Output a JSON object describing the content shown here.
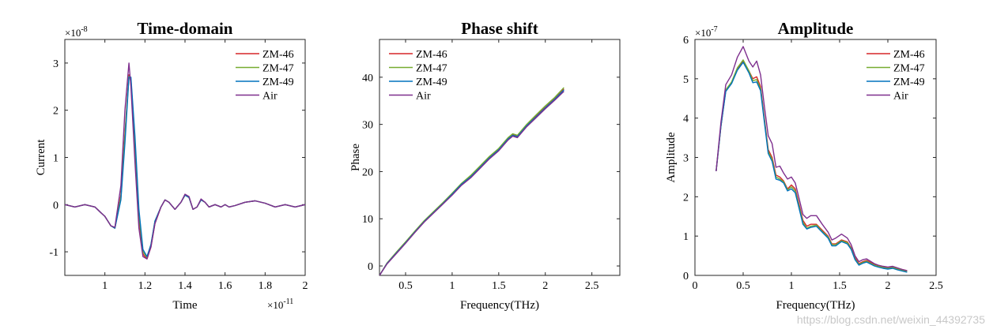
{
  "colors": {
    "ZM-46": "#d62728",
    "ZM-47": "#77ac30",
    "ZM-49": "#0072bd",
    "Air": "#7e2f8e"
  },
  "watermark": "https://blog.csdn.net/weixin_44392735",
  "chart_data": [
    {
      "type": "line",
      "title": "Time-domain",
      "xlabel": "Time",
      "ylabel": "Current",
      "x_exponent": "×10",
      "x_exponent_power": "-11",
      "y_exponent": "×10",
      "y_exponent_power": "-8",
      "xlim": [
        0.8,
        2.0
      ],
      "ylim": [
        -1.5,
        3.5
      ],
      "xticks": [
        1,
        1.2,
        1.4,
        1.6,
        1.8,
        2
      ],
      "xtick_labels": [
        "1",
        "1.2",
        "1.4",
        "1.6",
        "1.8",
        "2"
      ],
      "yticks": [
        -1,
        0,
        1,
        2,
        3
      ],
      "ytick_labels": [
        "-1",
        "0",
        "1",
        "2",
        "3"
      ],
      "legend": [
        "ZM-46",
        "ZM-47",
        "ZM-49",
        "Air"
      ],
      "legend_position": "top-right",
      "series": [
        {
          "name": "ZM-46",
          "x": [
            0.8,
            0.85,
            0.9,
            0.95,
            1.0,
            1.03,
            1.05,
            1.08,
            1.1,
            1.12,
            1.13,
            1.15,
            1.17,
            1.19,
            1.21,
            1.23,
            1.25,
            1.28,
            1.3,
            1.32,
            1.35,
            1.38,
            1.4,
            1.42,
            1.44,
            1.46,
            1.48,
            1.5,
            1.52,
            1.55,
            1.58,
            1.6,
            1.62,
            1.65,
            1.7,
            1.75,
            1.8,
            1.85,
            1.9,
            1.95,
            2.0
          ],
          "y": [
            0,
            -0.05,
            0.0,
            -0.05,
            -0.25,
            -0.45,
            -0.5,
            0.2,
            1.5,
            2.75,
            2.6,
            1.2,
            -0.3,
            -1.05,
            -1.15,
            -0.9,
            -0.4,
            -0.05,
            0.1,
            0.05,
            -0.1,
            0.05,
            0.2,
            0.15,
            -0.1,
            -0.05,
            0.1,
            0.05,
            -0.05,
            0.0,
            -0.05,
            0.0,
            -0.05,
            -0.02,
            0.05,
            0.08,
            0.03,
            -0.05,
            0.0,
            -0.05,
            0.0
          ]
        },
        {
          "name": "ZM-47",
          "x": [
            0.8,
            0.85,
            0.9,
            0.95,
            1.0,
            1.03,
            1.05,
            1.08,
            1.1,
            1.12,
            1.13,
            1.15,
            1.17,
            1.19,
            1.21,
            1.23,
            1.25,
            1.28,
            1.3,
            1.32,
            1.35,
            1.38,
            1.4,
            1.42,
            1.44,
            1.46,
            1.48,
            1.5,
            1.52,
            1.55,
            1.58,
            1.6,
            1.62,
            1.65,
            1.7,
            1.75,
            1.8,
            1.85,
            1.9,
            1.95,
            2.0
          ],
          "y": [
            0,
            -0.05,
            0.0,
            -0.05,
            -0.25,
            -0.45,
            -0.5,
            0.15,
            1.45,
            2.72,
            2.65,
            1.3,
            -0.2,
            -1.0,
            -1.12,
            -0.85,
            -0.35,
            -0.05,
            0.1,
            0.05,
            -0.1,
            0.05,
            0.2,
            0.15,
            -0.1,
            -0.05,
            0.1,
            0.05,
            -0.05,
            0.0,
            -0.05,
            0.0,
            -0.05,
            -0.02,
            0.05,
            0.08,
            0.03,
            -0.05,
            0.0,
            -0.05,
            0.0
          ]
        },
        {
          "name": "ZM-49",
          "x": [
            0.8,
            0.85,
            0.9,
            0.95,
            1.0,
            1.03,
            1.05,
            1.08,
            1.1,
            1.12,
            1.13,
            1.15,
            1.17,
            1.19,
            1.21,
            1.23,
            1.25,
            1.28,
            1.3,
            1.32,
            1.35,
            1.38,
            1.4,
            1.42,
            1.44,
            1.46,
            1.48,
            1.5,
            1.52,
            1.55,
            1.58,
            1.6,
            1.62,
            1.65,
            1.7,
            1.75,
            1.8,
            1.85,
            1.9,
            1.95,
            2.0
          ],
          "y": [
            0,
            -0.05,
            0.0,
            -0.05,
            -0.25,
            -0.45,
            -0.5,
            0.1,
            1.3,
            2.7,
            2.7,
            1.45,
            -0.1,
            -0.95,
            -1.1,
            -0.85,
            -0.35,
            -0.05,
            0.1,
            0.05,
            -0.1,
            0.05,
            0.2,
            0.15,
            -0.1,
            -0.05,
            0.1,
            0.05,
            -0.05,
            0.0,
            -0.05,
            0.0,
            -0.05,
            -0.02,
            0.05,
            0.08,
            0.03,
            -0.05,
            0.0,
            -0.05,
            0.0
          ]
        },
        {
          "name": "Air",
          "x": [
            0.8,
            0.85,
            0.9,
            0.95,
            1.0,
            1.03,
            1.05,
            1.08,
            1.1,
            1.12,
            1.13,
            1.15,
            1.17,
            1.19,
            1.21,
            1.23,
            1.25,
            1.28,
            1.3,
            1.32,
            1.35,
            1.38,
            1.4,
            1.42,
            1.44,
            1.46,
            1.48,
            1.5,
            1.52,
            1.55,
            1.58,
            1.6,
            1.62,
            1.65,
            1.7,
            1.75,
            1.8,
            1.85,
            1.9,
            1.95,
            2.0
          ],
          "y": [
            0,
            -0.05,
            0.0,
            -0.05,
            -0.25,
            -0.45,
            -0.48,
            0.4,
            2.0,
            3.0,
            2.5,
            0.9,
            -0.5,
            -1.1,
            -1.15,
            -0.9,
            -0.4,
            -0.05,
            0.1,
            0.05,
            -0.1,
            0.05,
            0.22,
            0.17,
            -0.1,
            -0.05,
            0.12,
            0.05,
            -0.05,
            0.0,
            -0.05,
            0.0,
            -0.05,
            -0.02,
            0.05,
            0.08,
            0.03,
            -0.05,
            0.0,
            -0.05,
            0.0
          ]
        }
      ]
    },
    {
      "type": "line",
      "title": "Phase shift",
      "xlabel": "Frequency(THz)",
      "ylabel": "Phase",
      "xlim": [
        0.22,
        2.8
      ],
      "ylim": [
        -2,
        48
      ],
      "xticks": [
        0.5,
        1,
        1.5,
        2,
        2.5
      ],
      "xtick_labels": [
        "0.5",
        "1",
        "1.5",
        "2",
        "2.5"
      ],
      "yticks": [
        0,
        10,
        20,
        30,
        40
      ],
      "ytick_labels": [
        "0",
        "10",
        "20",
        "30",
        "40"
      ],
      "legend": [
        "ZM-46",
        "ZM-47",
        "ZM-49",
        "Air"
      ],
      "legend_position": "top-left",
      "series": [
        {
          "name": "ZM-46",
          "x": [
            0.22,
            0.3,
            0.4,
            0.5,
            0.6,
            0.7,
            0.8,
            0.9,
            1.0,
            1.1,
            1.2,
            1.3,
            1.4,
            1.5,
            1.6,
            1.65,
            1.7,
            1.8,
            1.9,
            2.0,
            2.1,
            2.2
          ],
          "y": [
            -2,
            0.5,
            2.8,
            5.0,
            7.3,
            9.5,
            11.4,
            13.3,
            15.3,
            17.4,
            19.0,
            21.0,
            23.0,
            24.7,
            27.0,
            27.8,
            27.5,
            29.8,
            31.8,
            33.6,
            35.4,
            37.5
          ]
        },
        {
          "name": "ZM-47",
          "x": [
            0.22,
            0.3,
            0.4,
            0.5,
            0.6,
            0.7,
            0.8,
            0.9,
            1.0,
            1.1,
            1.2,
            1.3,
            1.4,
            1.5,
            1.6,
            1.65,
            1.7,
            1.8,
            1.9,
            2.0,
            2.1,
            2.2
          ],
          "y": [
            -2,
            0.6,
            2.9,
            5.1,
            7.4,
            9.6,
            11.5,
            13.4,
            15.4,
            17.5,
            19.2,
            21.2,
            23.2,
            24.9,
            27.2,
            28.0,
            27.7,
            30.0,
            32.0,
            33.9,
            35.7,
            37.8
          ]
        },
        {
          "name": "ZM-49",
          "x": [
            0.22,
            0.3,
            0.4,
            0.5,
            0.6,
            0.7,
            0.8,
            0.9,
            1.0,
            1.1,
            1.2,
            1.3,
            1.4,
            1.5,
            1.6,
            1.65,
            1.7,
            1.8,
            1.9,
            2.0,
            2.1,
            2.2
          ],
          "y": [
            -2,
            0.5,
            2.7,
            4.9,
            7.2,
            9.4,
            11.3,
            13.2,
            15.2,
            17.3,
            18.9,
            20.9,
            22.9,
            24.6,
            26.9,
            27.7,
            27.4,
            29.7,
            31.6,
            33.5,
            35.3,
            37.3
          ]
        },
        {
          "name": "Air",
          "x": [
            0.22,
            0.3,
            0.4,
            0.5,
            0.6,
            0.7,
            0.8,
            0.9,
            1.0,
            1.1,
            1.2,
            1.3,
            1.4,
            1.5,
            1.6,
            1.65,
            1.7,
            1.8,
            1.9,
            2.0,
            2.1,
            2.2
          ],
          "y": [
            -2,
            0.4,
            2.6,
            4.8,
            7.1,
            9.3,
            11.2,
            13.1,
            15.0,
            17.1,
            18.7,
            20.7,
            22.7,
            24.4,
            26.7,
            27.5,
            27.2,
            29.5,
            31.4,
            33.3,
            35.1,
            37.0
          ]
        }
      ]
    },
    {
      "type": "line",
      "title": "Amplitude",
      "xlabel": "Frequency(THz)",
      "ylabel": "Amplitude",
      "y_exponent": "×10",
      "y_exponent_power": "-7",
      "xlim": [
        0,
        2.5
      ],
      "ylim": [
        0,
        6
      ],
      "xticks": [
        0,
        0.5,
        1,
        1.5,
        2,
        2.5
      ],
      "xtick_labels": [
        "0",
        "0.5",
        "1",
        "1.5",
        "2",
        "2.5"
      ],
      "yticks": [
        0,
        1,
        2,
        3,
        4,
        5,
        6
      ],
      "ytick_labels": [
        "0",
        "1",
        "2",
        "3",
        "4",
        "5",
        "6"
      ],
      "legend": [
        "ZM-46",
        "ZM-47",
        "ZM-49",
        "Air"
      ],
      "legend_position": "top-right",
      "series": [
        {
          "name": "ZM-46",
          "x": [
            0.22,
            0.27,
            0.32,
            0.38,
            0.44,
            0.5,
            0.56,
            0.6,
            0.64,
            0.68,
            0.72,
            0.76,
            0.8,
            0.84,
            0.88,
            0.92,
            0.96,
            1.0,
            1.04,
            1.08,
            1.12,
            1.16,
            1.2,
            1.26,
            1.32,
            1.38,
            1.42,
            1.46,
            1.52,
            1.58,
            1.62,
            1.66,
            1.7,
            1.74,
            1.78,
            1.82,
            1.86,
            1.9,
            1.95,
            2.0,
            2.05,
            2.1,
            2.15,
            2.2
          ],
          "y": [
            2.65,
            3.8,
            4.7,
            4.9,
            5.25,
            5.45,
            5.2,
            5.0,
            5.05,
            4.8,
            4.0,
            3.2,
            3.0,
            2.55,
            2.5,
            2.4,
            2.2,
            2.3,
            2.2,
            1.8,
            1.4,
            1.25,
            1.3,
            1.3,
            1.15,
            1.0,
            0.8,
            0.8,
            0.9,
            0.85,
            0.7,
            0.45,
            0.3,
            0.35,
            0.38,
            0.33,
            0.28,
            0.25,
            0.22,
            0.2,
            0.22,
            0.18,
            0.15,
            0.12
          ]
        },
        {
          "name": "ZM-47",
          "x": [
            0.22,
            0.27,
            0.32,
            0.38,
            0.44,
            0.5,
            0.56,
            0.6,
            0.64,
            0.68,
            0.72,
            0.76,
            0.8,
            0.84,
            0.88,
            0.92,
            0.96,
            1.0,
            1.04,
            1.08,
            1.12,
            1.16,
            1.2,
            1.26,
            1.32,
            1.38,
            1.42,
            1.46,
            1.52,
            1.58,
            1.62,
            1.66,
            1.7,
            1.74,
            1.78,
            1.82,
            1.86,
            1.9,
            1.95,
            2.0,
            2.05,
            2.1,
            2.15,
            2.2
          ],
          "y": [
            2.65,
            3.8,
            4.72,
            4.92,
            5.28,
            5.48,
            5.2,
            4.95,
            4.98,
            4.75,
            3.95,
            3.15,
            2.95,
            2.5,
            2.45,
            2.38,
            2.18,
            2.25,
            2.15,
            1.75,
            1.35,
            1.2,
            1.25,
            1.28,
            1.12,
            0.98,
            0.78,
            0.78,
            0.88,
            0.83,
            0.68,
            0.42,
            0.28,
            0.33,
            0.36,
            0.31,
            0.26,
            0.23,
            0.2,
            0.18,
            0.2,
            0.16,
            0.13,
            0.1
          ]
        },
        {
          "name": "ZM-49",
          "x": [
            0.22,
            0.27,
            0.32,
            0.38,
            0.44,
            0.5,
            0.56,
            0.6,
            0.64,
            0.68,
            0.72,
            0.76,
            0.8,
            0.84,
            0.88,
            0.92,
            0.96,
            1.0,
            1.04,
            1.08,
            1.12,
            1.16,
            1.2,
            1.26,
            1.32,
            1.38,
            1.42,
            1.46,
            1.52,
            1.58,
            1.62,
            1.66,
            1.7,
            1.74,
            1.78,
            1.82,
            1.86,
            1.9,
            1.95,
            2.0,
            2.05,
            2.1,
            2.15,
            2.2
          ],
          "y": [
            2.65,
            3.8,
            4.68,
            4.88,
            5.22,
            5.42,
            5.15,
            4.9,
            4.92,
            4.7,
            3.9,
            3.1,
            2.9,
            2.45,
            2.42,
            2.35,
            2.15,
            2.2,
            2.1,
            1.7,
            1.3,
            1.18,
            1.22,
            1.25,
            1.1,
            0.95,
            0.75,
            0.75,
            0.86,
            0.8,
            0.66,
            0.4,
            0.26,
            0.31,
            0.34,
            0.29,
            0.24,
            0.21,
            0.18,
            0.16,
            0.18,
            0.14,
            0.11,
            0.08
          ]
        },
        {
          "name": "Air",
          "x": [
            0.22,
            0.27,
            0.32,
            0.38,
            0.44,
            0.5,
            0.56,
            0.6,
            0.64,
            0.68,
            0.72,
            0.76,
            0.8,
            0.84,
            0.88,
            0.92,
            0.96,
            1.0,
            1.04,
            1.08,
            1.12,
            1.16,
            1.2,
            1.26,
            1.32,
            1.38,
            1.42,
            1.46,
            1.52,
            1.58,
            1.62,
            1.66,
            1.7,
            1.74,
            1.78,
            1.82,
            1.86,
            1.9,
            1.95,
            2.0,
            2.05,
            2.1,
            2.15,
            2.2
          ],
          "y": [
            2.65,
            3.9,
            4.85,
            5.1,
            5.55,
            5.82,
            5.45,
            5.3,
            5.45,
            5.1,
            4.3,
            3.55,
            3.35,
            2.75,
            2.78,
            2.6,
            2.45,
            2.5,
            2.35,
            1.95,
            1.55,
            1.45,
            1.52,
            1.52,
            1.3,
            1.1,
            0.9,
            0.95,
            1.05,
            0.95,
            0.78,
            0.5,
            0.35,
            0.4,
            0.42,
            0.36,
            0.3,
            0.26,
            0.23,
            0.21,
            0.23,
            0.19,
            0.15,
            0.12
          ]
        }
      ]
    }
  ]
}
